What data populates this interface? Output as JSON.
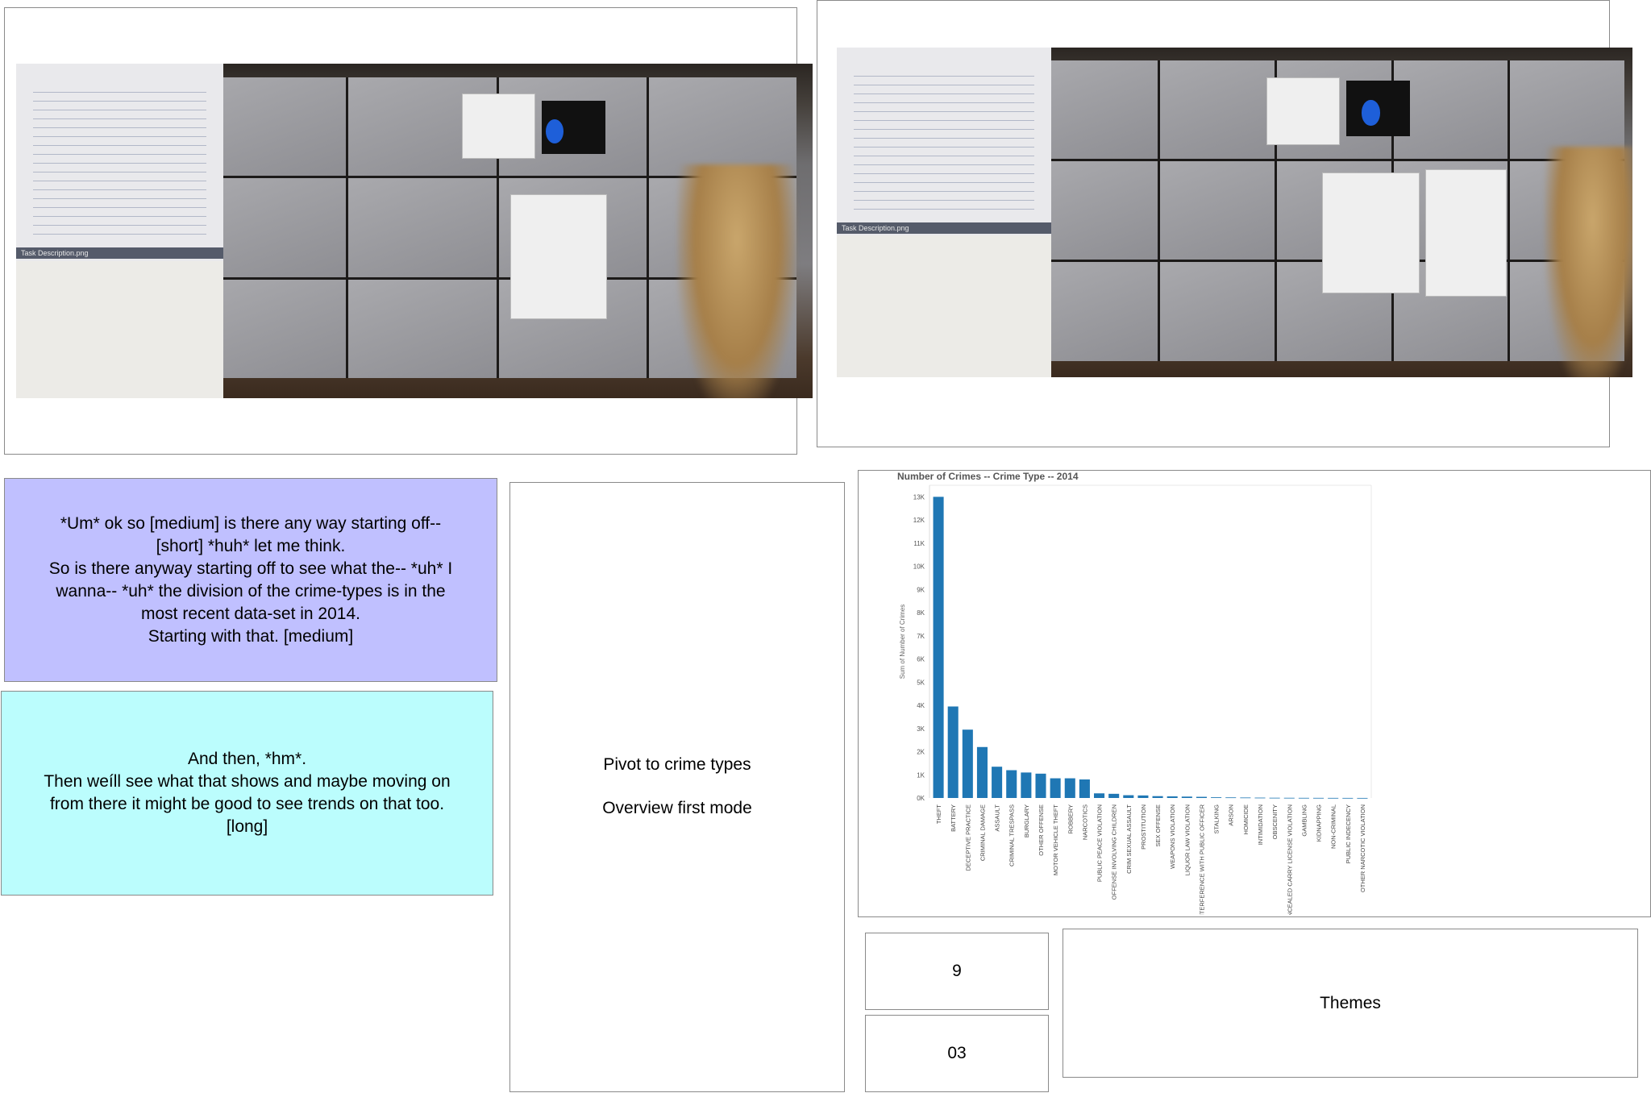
{
  "photos": [
    {
      "doc_header": "Task Description.png"
    },
    {
      "doc_header": "Task Description.png"
    }
  ],
  "transcript": {
    "first": [
      "*Um* ok so [medium] is there any way starting off--",
      "[short] *huh* let me think.",
      "So is there anyway starting off to see what the-- *uh* I",
      "wanna-- *uh* the division of the crime-types is in the",
      "most recent data-set in 2014.",
      "Starting with that. [medium]"
    ],
    "second": [
      "And then, *hm*.",
      "Then weíll see what that shows and maybe moving on",
      "from there it might be good to see trends on that too.",
      "[long]"
    ]
  },
  "annotation": {
    "line1": "Pivot to crime types",
    "line2": "Overview first mode"
  },
  "counters": {
    "top": "9",
    "bottom": "03"
  },
  "themes_label": "Themes",
  "colors": {
    "note1_bg": "#c0c0ff",
    "note2_bg": "#bbfdfd",
    "bar": "#1f77b4"
  },
  "chart_data": {
    "type": "bar",
    "title": "Number of Crimes --  Crime Type -- 2014",
    "ylabel": "Sum of Number of Crimes",
    "ylim": [
      0,
      13500
    ],
    "yticks": [
      {
        "value": 0,
        "label": "0K"
      },
      {
        "value": 1000,
        "label": "1K"
      },
      {
        "value": 2000,
        "label": "2K"
      },
      {
        "value": 3000,
        "label": "3K"
      },
      {
        "value": 4000,
        "label": "4K"
      },
      {
        "value": 5000,
        "label": "5K"
      },
      {
        "value": 6000,
        "label": "6K"
      },
      {
        "value": 7000,
        "label": "7K"
      },
      {
        "value": 8000,
        "label": "8K"
      },
      {
        "value": 9000,
        "label": "9K"
      },
      {
        "value": 10000,
        "label": "10K"
      },
      {
        "value": 11000,
        "label": "11K"
      },
      {
        "value": 12000,
        "label": "12K"
      },
      {
        "value": 13000,
        "label": "13K"
      }
    ],
    "categories": [
      "THEFT",
      "BATTERY",
      "DECEPTIVE PRACTICE",
      "CRIMINAL DAMAGE",
      "ASSAULT",
      "CRIMINAL TRESPASS",
      "BURGLARY",
      "OTHER OFFENSE",
      "MOTOR VEHICLE THEFT",
      "ROBBERY",
      "NARCOTICS",
      "PUBLIC PEACE VIOLATION",
      "OFFENSE INVOLVING CHILDREN",
      "CRIM SEXUAL ASSAULT",
      "PROSTITUTION",
      "SEX OFFENSE",
      "WEAPONS VIOLATION",
      "LIQUOR LAW VIOLATION",
      "INTERFERENCE WITH PUBLIC OFFICER",
      "STALKING",
      "ARSON",
      "HOMICIDE",
      "INTIMIDATION",
      "OBSCENITY",
      "CONCEALED CARRY LICENSE VIOLATION",
      "GAMBLING",
      "KIDNAPPING",
      "NON-CRIMINAL",
      "PUBLIC INDECENCY",
      "OTHER NARCOTIC VIOLATION"
    ],
    "values": [
      13000,
      3950,
      2950,
      2200,
      1350,
      1200,
      1100,
      1050,
      850,
      850,
      800,
      200,
      180,
      120,
      110,
      80,
      70,
      60,
      50,
      30,
      25,
      20,
      15,
      10,
      8,
      6,
      5,
      4,
      3,
      2
    ],
    "grid": false,
    "legend": "none"
  }
}
